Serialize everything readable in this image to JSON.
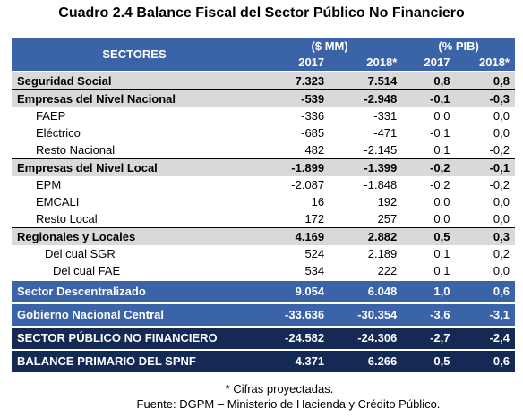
{
  "title": "Cuadro 2.4 Balance Fiscal del Sector Público No Financiero",
  "header": {
    "sectores": "SECTORES",
    "group_mm": "($ MM)",
    "group_pib": "(% PIB)",
    "col_2017_mm": "2017",
    "col_2018_mm": "2018*",
    "col_2017_pib": "2017",
    "col_2018_pib": "2018*"
  },
  "rows": [
    {
      "name": "Seguridad Social",
      "v1": "7.323",
      "v2": "7.514",
      "v3": "0,8",
      "v4": "0,8"
    },
    {
      "name": "Empresas del Nivel Nacional",
      "v1": "-539",
      "v2": "-2.948",
      "v3": "-0,1",
      "v4": "-0,3"
    },
    {
      "name": "FAEP",
      "v1": "-336",
      "v2": "-331",
      "v3": "0,0",
      "v4": "0,0"
    },
    {
      "name": "Eléctrico",
      "v1": "-685",
      "v2": "-471",
      "v3": "-0,1",
      "v4": "0,0"
    },
    {
      "name": "Resto Nacional",
      "v1": "482",
      "v2": "-2.145",
      "v3": "0,1",
      "v4": "-0,2"
    },
    {
      "name": "Empresas del Nivel Local",
      "v1": "-1.899",
      "v2": "-1.399",
      "v3": "-0,2",
      "v4": "-0,1"
    },
    {
      "name": "EPM",
      "v1": "-2.087",
      "v2": "-1.848",
      "v3": "-0,2",
      "v4": "-0,2"
    },
    {
      "name": "EMCALI",
      "v1": "16",
      "v2": "192",
      "v3": "0,0",
      "v4": "0,0"
    },
    {
      "name": "Resto Local",
      "v1": "172",
      "v2": "257",
      "v3": "0,0",
      "v4": "0,0"
    },
    {
      "name": "Regionales y Locales",
      "v1": "4.169",
      "v2": "2.882",
      "v3": "0,5",
      "v4": "0,3"
    },
    {
      "name": "Del cual SGR",
      "v1": "524",
      "v2": "2.189",
      "v3": "0,1",
      "v4": "0,2"
    },
    {
      "name": "Del cual FAE",
      "v1": "534",
      "v2": "222",
      "v3": "0,1",
      "v4": "0,0"
    },
    {
      "name": "Sector Descentralizado",
      "v1": "9.054",
      "v2": "6.048",
      "v3": "1,0",
      "v4": "0,6"
    },
    {
      "name": "Gobierno Nacional Central",
      "v1": "-33.636",
      "v2": "-30.354",
      "v3": "-3,6",
      "v4": "-3,1"
    },
    {
      "name": "SECTOR PÚBLICO NO FINANCIERO",
      "v1": "-24.582",
      "v2": "-24.306",
      "v3": "-2,7",
      "v4": "-2,4"
    },
    {
      "name": "BALANCE PRIMARIO DEL SPNF",
      "v1": "4.371",
      "v2": "6.266",
      "v3": "0,5",
      "v4": "0,6"
    }
  ],
  "footnote": "* Cifras proyectadas.",
  "source": "Fuente: DGPM – Ministerio de Hacienda y Crédito Público."
}
